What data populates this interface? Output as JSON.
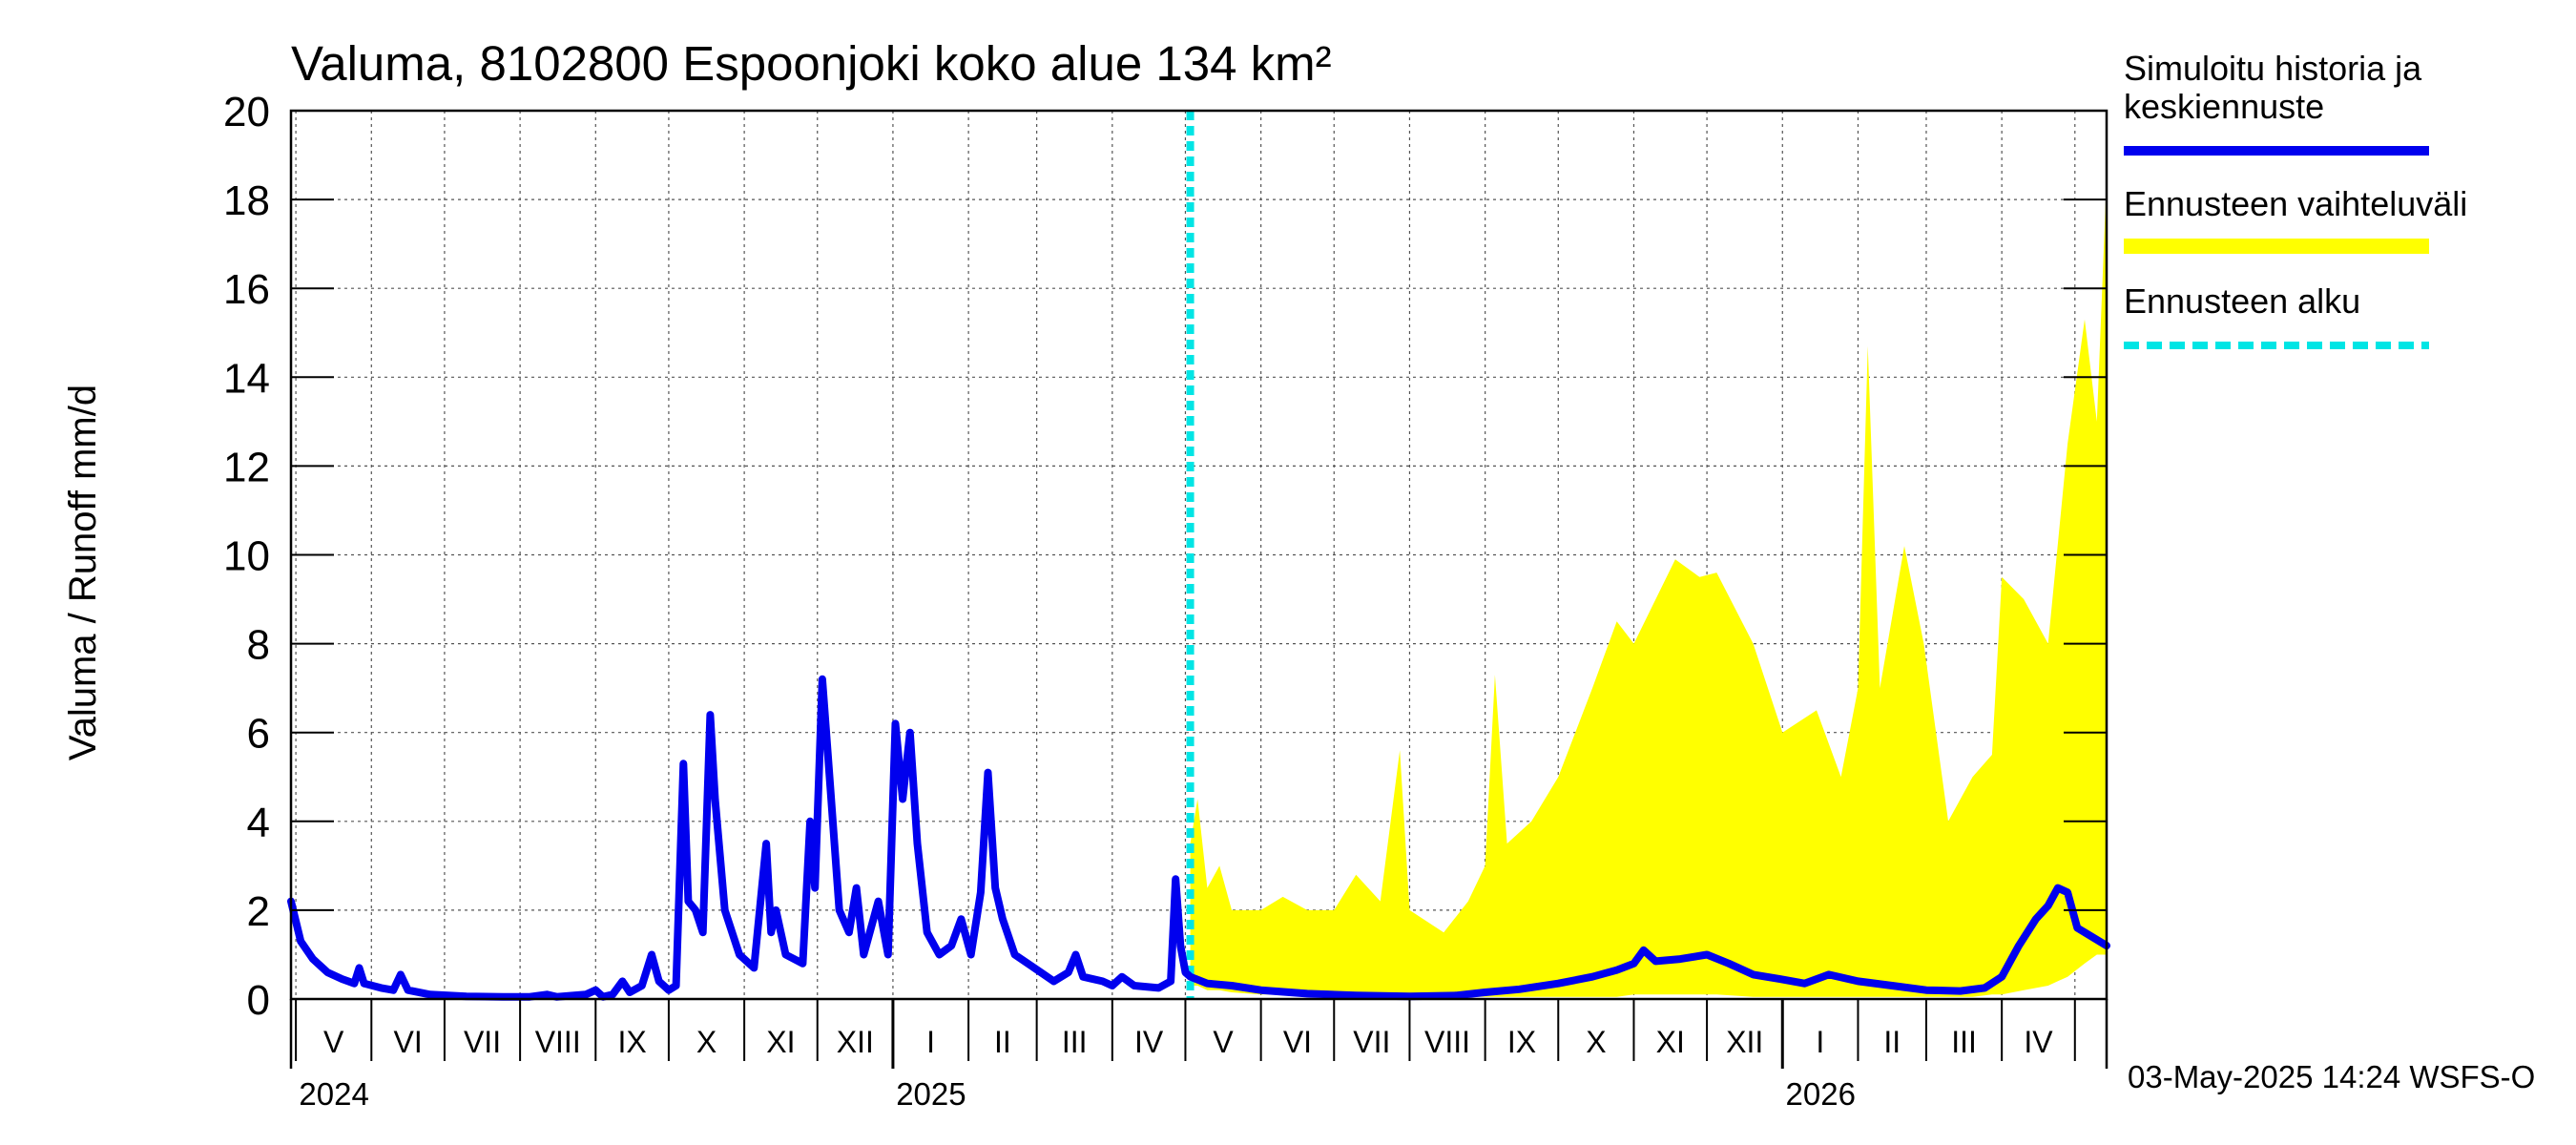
{
  "chart_data": {
    "type": "line",
    "title": "Valuma, 8102800 Espoonjoki koko alue 134 km²",
    "ylabel": "Valuma / Runoff     mm/d",
    "ylim": [
      0,
      20
    ],
    "yticks": [
      0,
      2,
      4,
      6,
      8,
      10,
      12,
      14,
      16,
      18,
      20
    ],
    "xlim": [
      "2024-04-29",
      "2026-05-14"
    ],
    "month_labels": [
      "V",
      "VI",
      "VII",
      "VIII",
      "IX",
      "X",
      "XI",
      "XII",
      "I",
      "II",
      "III",
      "IV",
      "V",
      "VI",
      "VII",
      "VIII",
      "IX",
      "X",
      "XI",
      "XII",
      "I",
      "II",
      "III",
      "IV"
    ],
    "month_starts": [
      "2024-05-01",
      "2024-06-01",
      "2024-07-01",
      "2024-08-01",
      "2024-09-01",
      "2024-10-01",
      "2024-11-01",
      "2024-12-01",
      "2025-01-01",
      "2025-02-01",
      "2025-03-01",
      "2025-04-01",
      "2025-05-01",
      "2025-06-01",
      "2025-07-01",
      "2025-08-01",
      "2025-09-01",
      "2025-10-01",
      "2025-11-01",
      "2025-12-01",
      "2026-01-01",
      "2026-02-01",
      "2026-03-01",
      "2026-04-01",
      "2026-05-01"
    ],
    "year_labels": [
      {
        "label": "2024",
        "date": "2024-05-01"
      },
      {
        "label": "2025",
        "date": "2025-01-01"
      },
      {
        "label": "2026",
        "date": "2026-01-01"
      }
    ],
    "forecast_start": "2025-05-03",
    "grid": true,
    "legend_position": "right",
    "series": [
      {
        "name": "Simuloitu historia ja keskiennuste",
        "color": "#0000ee",
        "points": [
          [
            "2024-04-29",
            2.2
          ],
          [
            "2024-05-03",
            1.3
          ],
          [
            "2024-05-08",
            0.9
          ],
          [
            "2024-05-14",
            0.6
          ],
          [
            "2024-05-20",
            0.45
          ],
          [
            "2024-05-25",
            0.35
          ],
          [
            "2024-05-27",
            0.7
          ],
          [
            "2024-05-29",
            0.35
          ],
          [
            "2024-06-05",
            0.25
          ],
          [
            "2024-06-10",
            0.2
          ],
          [
            "2024-06-13",
            0.55
          ],
          [
            "2024-06-16",
            0.2
          ],
          [
            "2024-06-25",
            0.1
          ],
          [
            "2024-07-10",
            0.06
          ],
          [
            "2024-07-25",
            0.05
          ],
          [
            "2024-08-05",
            0.05
          ],
          [
            "2024-08-12",
            0.1
          ],
          [
            "2024-08-16",
            0.05
          ],
          [
            "2024-08-28",
            0.1
          ],
          [
            "2024-09-01",
            0.2
          ],
          [
            "2024-09-04",
            0.05
          ],
          [
            "2024-09-08",
            0.1
          ],
          [
            "2024-09-12",
            0.4
          ],
          [
            "2024-09-15",
            0.15
          ],
          [
            "2024-09-20",
            0.3
          ],
          [
            "2024-09-24",
            1.0
          ],
          [
            "2024-09-27",
            0.4
          ],
          [
            "2024-10-01",
            0.2
          ],
          [
            "2024-10-04",
            0.3
          ],
          [
            "2024-10-07",
            5.3
          ],
          [
            "2024-10-09",
            2.2
          ],
          [
            "2024-10-12",
            2.0
          ],
          [
            "2024-10-15",
            1.5
          ],
          [
            "2024-10-18",
            6.4
          ],
          [
            "2024-10-20",
            4.5
          ],
          [
            "2024-10-24",
            2.0
          ],
          [
            "2024-10-30",
            1.0
          ],
          [
            "2024-11-05",
            0.7
          ],
          [
            "2024-11-10",
            3.5
          ],
          [
            "2024-11-12",
            1.5
          ],
          [
            "2024-11-14",
            2.0
          ],
          [
            "2024-11-18",
            1.0
          ],
          [
            "2024-11-25",
            0.8
          ],
          [
            "2024-11-28",
            4.0
          ],
          [
            "2024-11-30",
            2.5
          ],
          [
            "2024-12-03",
            7.2
          ],
          [
            "2024-12-06",
            5.0
          ],
          [
            "2024-12-10",
            2.0
          ],
          [
            "2024-12-14",
            1.5
          ],
          [
            "2024-12-17",
            2.5
          ],
          [
            "2024-12-20",
            1.0
          ],
          [
            "2024-12-26",
            2.2
          ],
          [
            "2024-12-30",
            1.0
          ],
          [
            "2025-01-02",
            6.2
          ],
          [
            "2025-01-05",
            4.5
          ],
          [
            "2025-01-08",
            6.0
          ],
          [
            "2025-01-11",
            3.5
          ],
          [
            "2025-01-15",
            1.5
          ],
          [
            "2025-01-20",
            1.0
          ],
          [
            "2025-01-25",
            1.2
          ],
          [
            "2025-01-29",
            1.8
          ],
          [
            "2025-02-02",
            1.0
          ],
          [
            "2025-02-06",
            2.4
          ],
          [
            "2025-02-09",
            5.1
          ],
          [
            "2025-02-12",
            2.5
          ],
          [
            "2025-02-15",
            1.8
          ],
          [
            "2025-02-20",
            1.0
          ],
          [
            "2025-02-28",
            0.7
          ],
          [
            "2025-03-08",
            0.4
          ],
          [
            "2025-03-14",
            0.6
          ],
          [
            "2025-03-17",
            1.0
          ],
          [
            "2025-03-20",
            0.5
          ],
          [
            "2025-03-28",
            0.4
          ],
          [
            "2025-04-01",
            0.3
          ],
          [
            "2025-04-05",
            0.5
          ],
          [
            "2025-04-10",
            0.3
          ],
          [
            "2025-04-20",
            0.25
          ],
          [
            "2025-04-25",
            0.4
          ],
          [
            "2025-04-27",
            2.7
          ],
          [
            "2025-04-29",
            1.2
          ],
          [
            "2025-05-01",
            0.6
          ],
          [
            "2025-05-03",
            0.5
          ],
          [
            "2025-05-10",
            0.35
          ],
          [
            "2025-05-20",
            0.3
          ],
          [
            "2025-06-01",
            0.2
          ],
          [
            "2025-06-20",
            0.12
          ],
          [
            "2025-07-10",
            0.08
          ],
          [
            "2025-08-01",
            0.06
          ],
          [
            "2025-08-20",
            0.08
          ],
          [
            "2025-09-01",
            0.15
          ],
          [
            "2025-09-15",
            0.22
          ],
          [
            "2025-10-01",
            0.35
          ],
          [
            "2025-10-15",
            0.5
          ],
          [
            "2025-10-25",
            0.65
          ],
          [
            "2025-11-01",
            0.8
          ],
          [
            "2025-11-05",
            1.1
          ],
          [
            "2025-11-10",
            0.85
          ],
          [
            "2025-11-20",
            0.9
          ],
          [
            "2025-12-01",
            1.0
          ],
          [
            "2025-12-10",
            0.8
          ],
          [
            "2025-12-20",
            0.55
          ],
          [
            "2025-12-31",
            0.45
          ],
          [
            "2026-01-10",
            0.35
          ],
          [
            "2026-01-20",
            0.55
          ],
          [
            "2026-02-01",
            0.4
          ],
          [
            "2026-02-15",
            0.3
          ],
          [
            "2026-03-01",
            0.2
          ],
          [
            "2026-03-15",
            0.18
          ],
          [
            "2026-03-25",
            0.25
          ],
          [
            "2026-04-01",
            0.5
          ],
          [
            "2026-04-08",
            1.2
          ],
          [
            "2026-04-15",
            1.8
          ],
          [
            "2026-04-20",
            2.1
          ],
          [
            "2026-04-24",
            2.5
          ],
          [
            "2026-04-28",
            2.4
          ],
          [
            "2026-05-02",
            1.6
          ],
          [
            "2026-05-08",
            1.4
          ],
          [
            "2026-05-14",
            1.2
          ]
        ]
      },
      {
        "name": "Ennusteen vaihteluväli",
        "color": "#ffff00",
        "band": [
          [
            "2025-05-03",
            0.3,
            3.5
          ],
          [
            "2025-05-06",
            0.3,
            4.5
          ],
          [
            "2025-05-10",
            0.2,
            2.5
          ],
          [
            "2025-05-15",
            0.2,
            3.0
          ],
          [
            "2025-05-20",
            0.15,
            2.0
          ],
          [
            "2025-06-01",
            0.1,
            2.0
          ],
          [
            "2025-06-10",
            0.1,
            2.3
          ],
          [
            "2025-06-20",
            0.08,
            2.0
          ],
          [
            "2025-07-01",
            0.05,
            2.0
          ],
          [
            "2025-07-10",
            0.05,
            2.8
          ],
          [
            "2025-07-20",
            0.05,
            2.2
          ],
          [
            "2025-07-28",
            0.05,
            5.6
          ],
          [
            "2025-08-01",
            0.04,
            2.0
          ],
          [
            "2025-08-15",
            0.05,
            1.5
          ],
          [
            "2025-08-25",
            0.05,
            2.2
          ],
          [
            "2025-09-01",
            0.05,
            3.0
          ],
          [
            "2025-09-05",
            0.05,
            7.3
          ],
          [
            "2025-09-10",
            0.05,
            3.5
          ],
          [
            "2025-09-20",
            0.05,
            4.0
          ],
          [
            "2025-10-01",
            0.05,
            5.0
          ],
          [
            "2025-10-15",
            0.05,
            7.0
          ],
          [
            "2025-10-25",
            0.05,
            8.5
          ],
          [
            "2025-11-01",
            0.1,
            8.0
          ],
          [
            "2025-11-10",
            0.1,
            9.0
          ],
          [
            "2025-11-18",
            0.1,
            9.9
          ],
          [
            "2025-11-28",
            0.1,
            9.5
          ],
          [
            "2025-12-05",
            0.1,
            9.6
          ],
          [
            "2025-12-20",
            0.05,
            8.0
          ],
          [
            "2026-01-01",
            0.05,
            6.0
          ],
          [
            "2026-01-15",
            0.05,
            6.5
          ],
          [
            "2026-01-25",
            0.05,
            5.0
          ],
          [
            "2026-02-01",
            0.05,
            7.0
          ],
          [
            "2026-02-05",
            0.05,
            14.7
          ],
          [
            "2026-02-10",
            0.05,
            7.0
          ],
          [
            "2026-02-20",
            0.05,
            10.2
          ],
          [
            "2026-02-28",
            0.05,
            8.0
          ],
          [
            "2026-03-10",
            0.05,
            4.0
          ],
          [
            "2026-03-20",
            0.05,
            5.0
          ],
          [
            "2026-03-28",
            0.1,
            5.5
          ],
          [
            "2026-04-01",
            0.1,
            9.5
          ],
          [
            "2026-04-10",
            0.2,
            9.0
          ],
          [
            "2026-04-20",
            0.3,
            8.0
          ],
          [
            "2026-04-28",
            0.5,
            12.5
          ],
          [
            "2026-05-05",
            0.8,
            15.3
          ],
          [
            "2026-05-10",
            1.0,
            13.0
          ],
          [
            "2026-05-14",
            1.0,
            18.5
          ]
        ]
      },
      {
        "name": "Ennusteen alku",
        "color": "#00e5e5"
      }
    ]
  },
  "legend": {
    "items": [
      {
        "label": "Simuloitu historia ja keskiennuste",
        "color": "#0000ee",
        "style": "solid"
      },
      {
        "label": "Ennusteen vaihteluväli",
        "color": "#ffff00",
        "style": "solid"
      },
      {
        "label": "Ennusteen alku",
        "color": "#00e5e5",
        "style": "dashed"
      }
    ]
  },
  "footer": {
    "timestamp": "03-May-2025 14:24 WSFS-O"
  }
}
